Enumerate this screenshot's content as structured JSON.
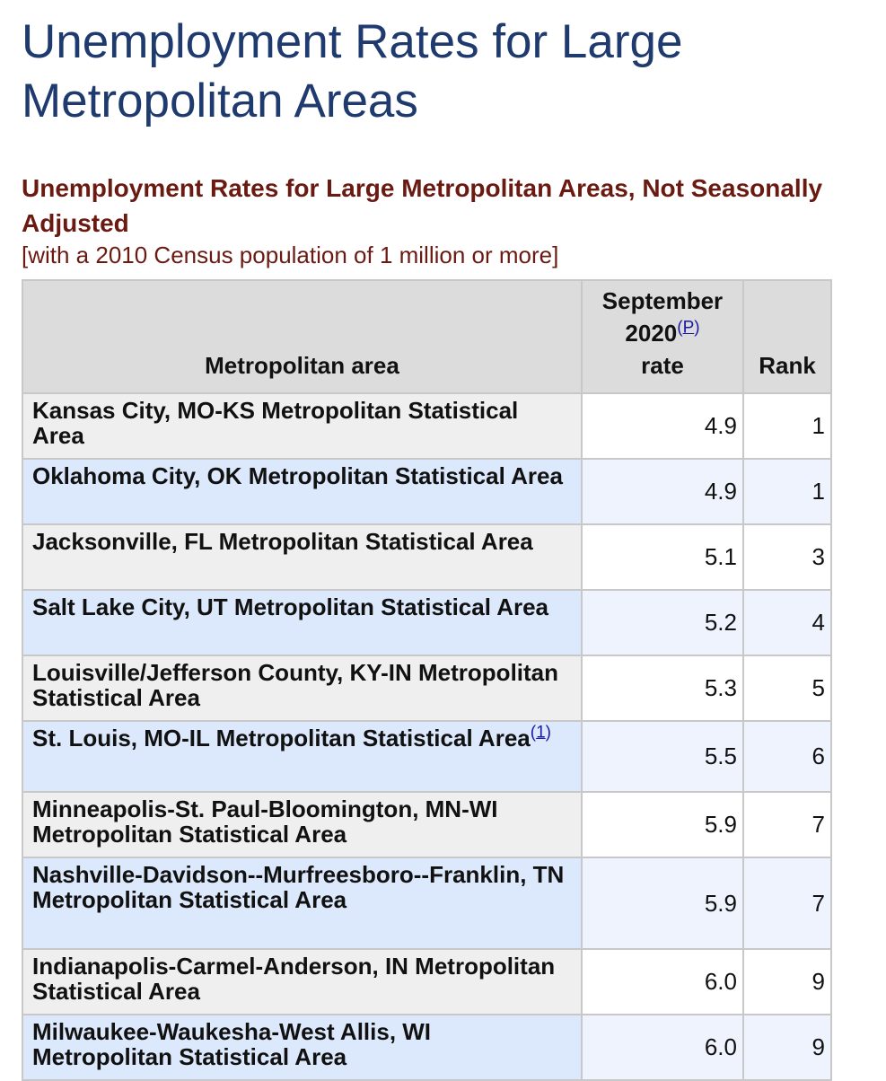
{
  "page": {
    "title": "Unemployment Rates for Large Metropolitan Areas"
  },
  "table": {
    "caption_title": "Unemployment Rates for Large Metropolitan Areas, Not Seasonally Adjusted",
    "caption_sub": "[with a 2010 Census population of 1 million or more]",
    "headers": {
      "area": "Metropolitan area",
      "rate_line1": "September",
      "rate_line2": "2020",
      "rate_note": "P",
      "rate_line3": "rate",
      "rank": "Rank"
    },
    "rows": [
      {
        "area": "Kansas City, MO-KS Metropolitan Statistical Area",
        "note": "",
        "rate": "4.9",
        "rank": "1"
      },
      {
        "area": "Oklahoma City, OK Metropolitan Statistical Area",
        "note": "",
        "rate": "4.9",
        "rank": "1"
      },
      {
        "area": "Jacksonville, FL Metropolitan Statistical Area",
        "note": "",
        "rate": "5.1",
        "rank": "3"
      },
      {
        "area": "Salt Lake City, UT Metropolitan Statistical Area",
        "note": "",
        "rate": "5.2",
        "rank": "4"
      },
      {
        "area": "Louisville/Jefferson County, KY-IN Metropolitan Statistical Area",
        "note": "",
        "rate": "5.3",
        "rank": "5"
      },
      {
        "area": "St. Louis, MO-IL Metropolitan Statistical Area",
        "note": "1",
        "rate": "5.5",
        "rank": "6"
      },
      {
        "area": "Minneapolis-St. Paul-Bloomington, MN-WI Metropolitan Statistical Area",
        "note": "",
        "rate": "5.9",
        "rank": "7"
      },
      {
        "area": "Nashville-Davidson--Murfreesboro--Franklin, TN Metropolitan Statistical Area",
        "note": "",
        "rate": "5.9",
        "rank": "7"
      },
      {
        "area": "Indianapolis-Carmel-Anderson, IN Metropolitan Statistical Area",
        "note": "",
        "rate": "6.0",
        "rank": "9"
      },
      {
        "area": "Milwaukee-Waukesha-West Allis, WI Metropolitan Statistical Area",
        "note": "",
        "rate": "6.0",
        "rank": "9"
      }
    ]
  },
  "colors": {
    "title": "#1f3a6e",
    "caption": "#6b1a12",
    "header_bg": "#dcdcdc",
    "row_gray": "#efefef",
    "row_blue": "#dce8fb",
    "link": "#1a1aa6"
  }
}
